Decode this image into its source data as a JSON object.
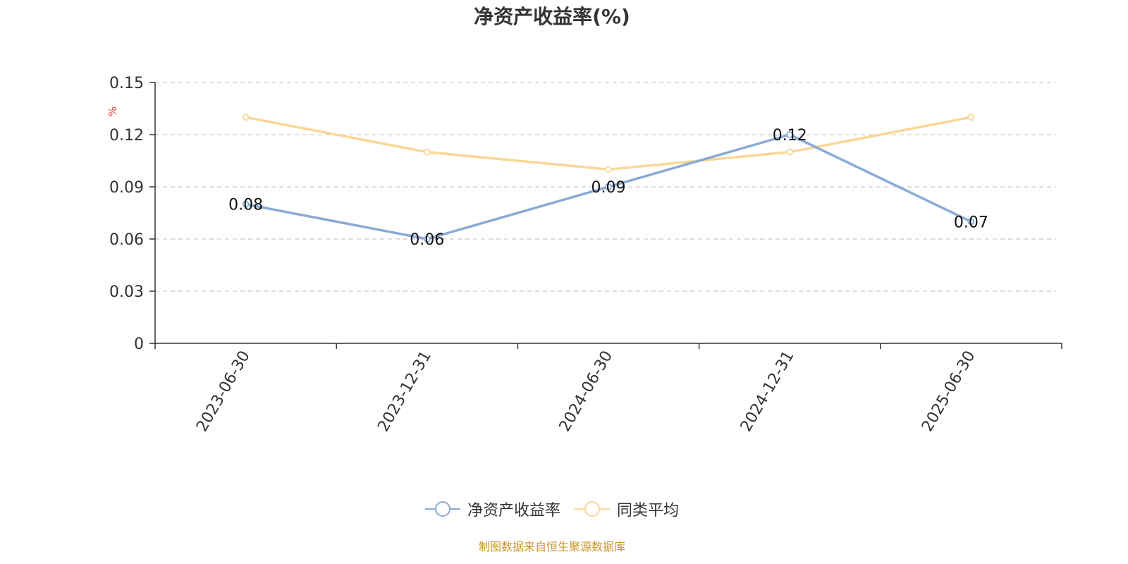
{
  "chart_data": {
    "type": "line",
    "title": "净资产收益率(%)",
    "ylabel": "%",
    "categories": [
      "2023-06-30",
      "2023-12-31",
      "2024-06-30",
      "2024-12-31",
      "2025-06-30"
    ],
    "ylim": [
      0,
      0.15
    ],
    "yticks": [
      "0",
      "0.03",
      "0.06",
      "0.09",
      "0.12",
      "0.15"
    ],
    "grid": "horizontal dashed",
    "legend_position": "bottom-center",
    "series": [
      {
        "name": "净资产收益率",
        "values": [
          0.08,
          0.06,
          0.09,
          0.12,
          0.07
        ],
        "labels": [
          "0.08",
          "0.06",
          "0.09",
          "0.12",
          "0.07"
        ],
        "color": "#8aaad6"
      },
      {
        "name": "同类平均",
        "values": [
          0.13,
          0.11,
          0.1,
          0.11,
          0.13
        ],
        "color": "#fad797"
      }
    ],
    "source": "制图数据来自恒生聚源数据库",
    "source_color": "#c8952a"
  }
}
